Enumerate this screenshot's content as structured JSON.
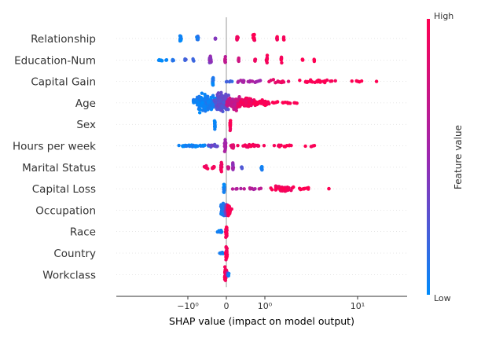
{
  "chart_data": {
    "type": "scatter",
    "subtype": "shap-beeswarm",
    "title": "",
    "xlabel": "SHAP value (impact on model output)",
    "ylabel": "",
    "x_scale": "symlog",
    "x_range": [
      -2.3,
      17
    ],
    "grid": false,
    "x_ticks": [
      {
        "value": -1,
        "label": "−10⁰"
      },
      {
        "value": 0,
        "label": "0"
      },
      {
        "value": 1,
        "label": "10⁰"
      },
      {
        "value": 10,
        "label": "10¹"
      }
    ],
    "colorbar": {
      "title": "Feature value",
      "high_label": "High",
      "low_label": "Low",
      "low_color": "#008bfb",
      "mid_color": "#9c27b0",
      "high_color": "#ff0052"
    },
    "features": [
      {
        "name": "Relationship",
        "clusters": [
          {
            "x": -1.2,
            "c": 0.02,
            "n": 14,
            "spread": 0.02,
            "w": 0.35
          },
          {
            "x": -0.75,
            "c": 0.12,
            "n": 10,
            "spread": 0.02,
            "w": 0.25
          },
          {
            "x": -0.28,
            "c": 0.45,
            "n": 5,
            "spread": 0.01,
            "w": 0.1
          },
          {
            "x": 0.28,
            "c": 0.9,
            "n": 10,
            "spread": 0.02,
            "w": 0.25
          },
          {
            "x": 0.72,
            "c": 0.98,
            "n": 14,
            "spread": 0.02,
            "w": 0.42
          },
          {
            "x": 1.35,
            "c": 0.97,
            "n": 8,
            "spread": 0.02,
            "w": 0.22
          },
          {
            "x": 1.6,
            "c": 0.98,
            "n": 5,
            "spread": 0.01,
            "w": 0.16
          }
        ]
      },
      {
        "name": "Education-Num",
        "clusters": [
          {
            "x": -2.0,
            "c": 0.0,
            "n": 8,
            "spread": 0.12,
            "w": 0.08
          },
          {
            "x": -1.7,
            "c": 0.05,
            "n": 3,
            "spread": 0.02,
            "w": 0.08
          },
          {
            "x": -1.45,
            "c": 0.1,
            "n": 4,
            "spread": 0.03,
            "w": 0.1
          },
          {
            "x": -1.07,
            "c": 0.2,
            "n": 4,
            "spread": 0.02,
            "w": 0.12
          },
          {
            "x": -0.85,
            "c": 0.22,
            "n": 3,
            "spread": 0.02,
            "w": 0.1
          },
          {
            "x": -0.42,
            "c": 0.45,
            "n": 20,
            "spread": 0.02,
            "w": 0.42
          },
          {
            "x": -0.03,
            "c": 0.65,
            "n": 10,
            "spread": 0.01,
            "w": 0.3
          },
          {
            "x": 0.32,
            "c": 0.78,
            "n": 5,
            "spread": 0.01,
            "w": 0.12
          },
          {
            "x": 0.75,
            "c": 0.9,
            "n": 5,
            "spread": 0.02,
            "w": 0.1
          },
          {
            "x": 1.05,
            "c": 0.96,
            "n": 10,
            "spread": 0.02,
            "w": 0.35
          },
          {
            "x": 1.5,
            "c": 0.98,
            "n": 7,
            "spread": 0.02,
            "w": 0.25
          },
          {
            "x": 2.55,
            "c": 1.0,
            "n": 4,
            "spread": 0.02,
            "w": 0.12
          },
          {
            "x": 3.4,
            "c": 1.0,
            "n": 4,
            "spread": 0.02,
            "w": 0.1
          }
        ]
      },
      {
        "name": "Capital Gain",
        "clusters": [
          {
            "x": -0.35,
            "c": 0.05,
            "n": 18,
            "spread": 0.01,
            "w": 0.4
          },
          {
            "x": 0.1,
            "c": 0.2,
            "n": 5,
            "spread": 0.08,
            "w": 0.06
          },
          {
            "x": 0.55,
            "c": 0.55,
            "n": 18,
            "spread": 0.35,
            "w": 0.12
          },
          {
            "x": 1.45,
            "c": 0.9,
            "n": 14,
            "spread": 0.35,
            "w": 0.18
          },
          {
            "x": 3.8,
            "c": 1.0,
            "n": 30,
            "spread": 1.8,
            "w": 0.14
          },
          {
            "x": 10.0,
            "c": 1.0,
            "n": 6,
            "spread": 1.5,
            "w": 0.06
          },
          {
            "x": 16.0,
            "c": 1.0,
            "n": 1,
            "spread": 0.1,
            "w": 0.0
          }
        ]
      },
      {
        "name": "Age",
        "clusters": [
          {
            "x": -0.55,
            "c": 0.05,
            "n": 180,
            "spread": 0.25,
            "w": 0.62
          },
          {
            "x": -0.12,
            "c": 0.3,
            "n": 140,
            "spread": 0.18,
            "w": 0.7
          },
          {
            "x": 0.2,
            "c": 0.7,
            "n": 110,
            "spread": 0.18,
            "w": 0.52
          },
          {
            "x": 0.55,
            "c": 0.92,
            "n": 80,
            "spread": 0.22,
            "w": 0.38
          },
          {
            "x": 1.0,
            "c": 1.0,
            "n": 40,
            "spread": 0.3,
            "w": 0.2
          },
          {
            "x": 1.9,
            "c": 1.0,
            "n": 10,
            "spread": 0.4,
            "w": 0.08
          }
        ]
      },
      {
        "name": "Sex",
        "clusters": [
          {
            "x": -0.3,
            "c": 0.05,
            "n": 16,
            "spread": 0.01,
            "w": 0.38
          },
          {
            "x": 0.1,
            "c": 0.98,
            "n": 18,
            "spread": 0.01,
            "w": 0.45
          }
        ]
      },
      {
        "name": "Hours per week",
        "clusters": [
          {
            "x": -0.75,
            "c": 0.05,
            "n": 40,
            "spread": 0.55,
            "w": 0.08
          },
          {
            "x": -0.3,
            "c": 0.3,
            "n": 12,
            "spread": 0.15,
            "w": 0.12
          },
          {
            "x": -0.03,
            "c": 0.55,
            "n": 22,
            "spread": 0.02,
            "w": 0.5
          },
          {
            "x": 0.15,
            "c": 0.85,
            "n": 10,
            "spread": 0.05,
            "w": 0.18
          },
          {
            "x": 0.65,
            "c": 0.95,
            "n": 30,
            "spread": 0.3,
            "w": 0.12
          },
          {
            "x": 1.7,
            "c": 1.0,
            "n": 14,
            "spread": 0.5,
            "w": 0.1
          },
          {
            "x": 3.2,
            "c": 1.0,
            "n": 5,
            "spread": 0.4,
            "w": 0.06
          }
        ]
      },
      {
        "name": "Marital Status",
        "clusters": [
          {
            "x": -0.52,
            "c": 0.95,
            "n": 6,
            "spread": 0.04,
            "w": 0.12
          },
          {
            "x": -0.34,
            "c": 0.97,
            "n": 6,
            "spread": 0.03,
            "w": 0.12
          },
          {
            "x": -0.13,
            "c": 0.92,
            "n": 14,
            "spread": 0.02,
            "w": 0.4
          },
          {
            "x": 0.05,
            "c": 0.75,
            "n": 8,
            "spread": 0.01,
            "w": 0.15
          },
          {
            "x": 0.17,
            "c": 0.5,
            "n": 12,
            "spread": 0.01,
            "w": 0.38
          },
          {
            "x": 0.4,
            "c": 0.25,
            "n": 5,
            "spread": 0.01,
            "w": 0.1
          },
          {
            "x": 0.92,
            "c": 0.05,
            "n": 8,
            "spread": 0.02,
            "w": 0.28
          }
        ]
      },
      {
        "name": "Capital Loss",
        "clusters": [
          {
            "x": -0.06,
            "c": 0.05,
            "n": 18,
            "spread": 0.01,
            "w": 0.38
          },
          {
            "x": 0.3,
            "c": 0.6,
            "n": 6,
            "spread": 0.12,
            "w": 0.05
          },
          {
            "x": 0.75,
            "c": 0.6,
            "n": 8,
            "spread": 0.15,
            "w": 0.06
          },
          {
            "x": 1.6,
            "c": 0.95,
            "n": 60,
            "spread": 0.4,
            "w": 0.2
          },
          {
            "x": 2.8,
            "c": 1.0,
            "n": 10,
            "spread": 0.5,
            "w": 0.1
          },
          {
            "x": 4.9,
            "c": 1.0,
            "n": 2,
            "spread": 0.1,
            "w": 0.05
          }
        ]
      },
      {
        "name": "Occupation",
        "clusters": [
          {
            "x": -0.1,
            "c": 0.08,
            "n": 55,
            "spread": 0.04,
            "w": 0.55
          },
          {
            "x": 0.0,
            "c": 0.35,
            "n": 25,
            "spread": 0.03,
            "w": 0.45
          },
          {
            "x": 0.07,
            "c": 0.97,
            "n": 45,
            "spread": 0.05,
            "w": 0.6
          }
        ]
      },
      {
        "name": "Race",
        "clusters": [
          {
            "x": -0.18,
            "c": 0.05,
            "n": 10,
            "spread": 0.06,
            "w": 0.1
          },
          {
            "x": 0.0,
            "c": 0.97,
            "n": 35,
            "spread": 0.02,
            "w": 0.5
          }
        ]
      },
      {
        "name": "Country",
        "clusters": [
          {
            "x": -0.12,
            "c": 0.05,
            "n": 8,
            "spread": 0.05,
            "w": 0.08
          },
          {
            "x": 0.0,
            "c": 0.97,
            "n": 35,
            "spread": 0.02,
            "w": 0.5
          }
        ]
      },
      {
        "name": "Workclass",
        "clusters": [
          {
            "x": -0.02,
            "c": 0.96,
            "n": 40,
            "spread": 0.03,
            "w": 0.55
          },
          {
            "x": 0.04,
            "c": 0.5,
            "n": 10,
            "spread": 0.02,
            "w": 0.3
          },
          {
            "x": 0.06,
            "c": 0.05,
            "n": 6,
            "spread": 0.02,
            "w": 0.2
          }
        ]
      }
    ]
  }
}
